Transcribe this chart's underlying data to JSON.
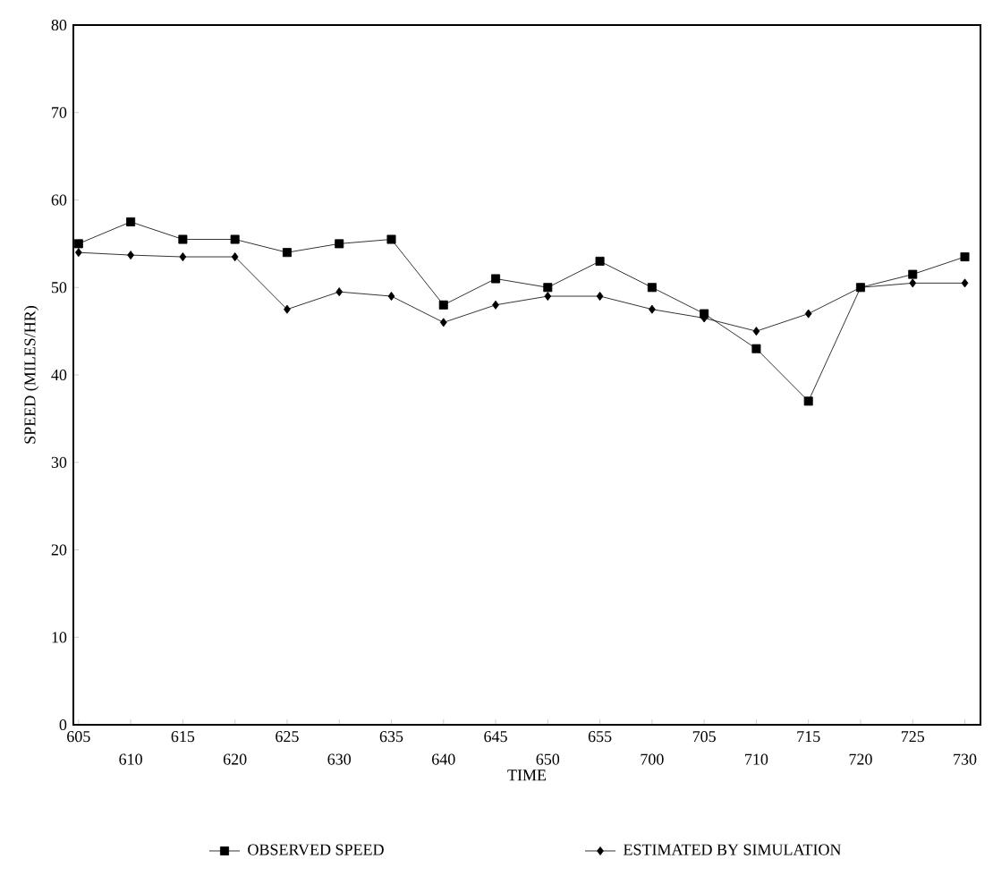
{
  "chart_data": {
    "type": "line",
    "xlabel": "TIME",
    "ylabel": "SPEED (MILES/HR)",
    "categories": [
      "605",
      "610",
      "615",
      "620",
      "625",
      "630",
      "635",
      "640",
      "645",
      "650",
      "655",
      "700",
      "705",
      "710",
      "715",
      "720",
      "725",
      "730"
    ],
    "ylim": [
      0,
      80
    ],
    "yticks": [
      0,
      10,
      20,
      30,
      40,
      50,
      60,
      70,
      80
    ],
    "grid": false,
    "legend": "bottom",
    "series": [
      {
        "name": "OBSERVED SPEED",
        "color": "#000000",
        "marker": "square",
        "values": [
          55,
          57.5,
          55.5,
          55.5,
          54,
          55,
          55.5,
          48,
          51,
          50,
          53,
          50,
          47,
          43,
          37,
          50,
          51.5,
          53.5
        ]
      },
      {
        "name": "ESTIMATED BY SIMULATION",
        "color": "#000000",
        "marker": "diamond",
        "values": [
          54,
          53.7,
          53.5,
          53.5,
          47.5,
          49.5,
          49,
          46,
          48,
          49,
          49,
          47.5,
          46.5,
          45,
          47,
          50,
          50.5,
          50.5
        ]
      }
    ]
  }
}
